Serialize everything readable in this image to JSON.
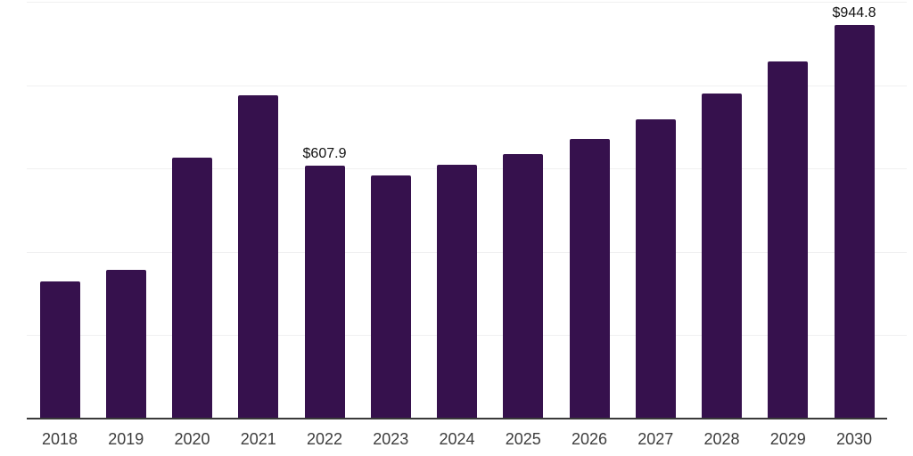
{
  "chart_data": {
    "type": "bar",
    "title": "",
    "xlabel": "",
    "ylabel": "",
    "categories": [
      "2018",
      "2019",
      "2020",
      "2021",
      "2022",
      "2023",
      "2024",
      "2025",
      "2026",
      "2027",
      "2028",
      "2029",
      "2030"
    ],
    "values": [
      330,
      357,
      627,
      775,
      607.9,
      584,
      610,
      634,
      670,
      717,
      779,
      856,
      944.8
    ],
    "annotations": [
      {
        "category": "2022",
        "label": "$607.9"
      },
      {
        "category": "2030",
        "label": "$944.8"
      }
    ],
    "currency_prefix": "$",
    "ylim": [
      0,
      1000
    ],
    "gridline_values": [
      200,
      400,
      600,
      800,
      1000
    ],
    "grid": "horizontal-light",
    "legend_position": "none",
    "colors": {
      "bar": "#36114D",
      "gridline": "#F0F0F1",
      "axis": "#3A3A3A",
      "tick_label": "#3D3D3D",
      "data_label": "#111111",
      "background": "#FFFFFF"
    }
  }
}
